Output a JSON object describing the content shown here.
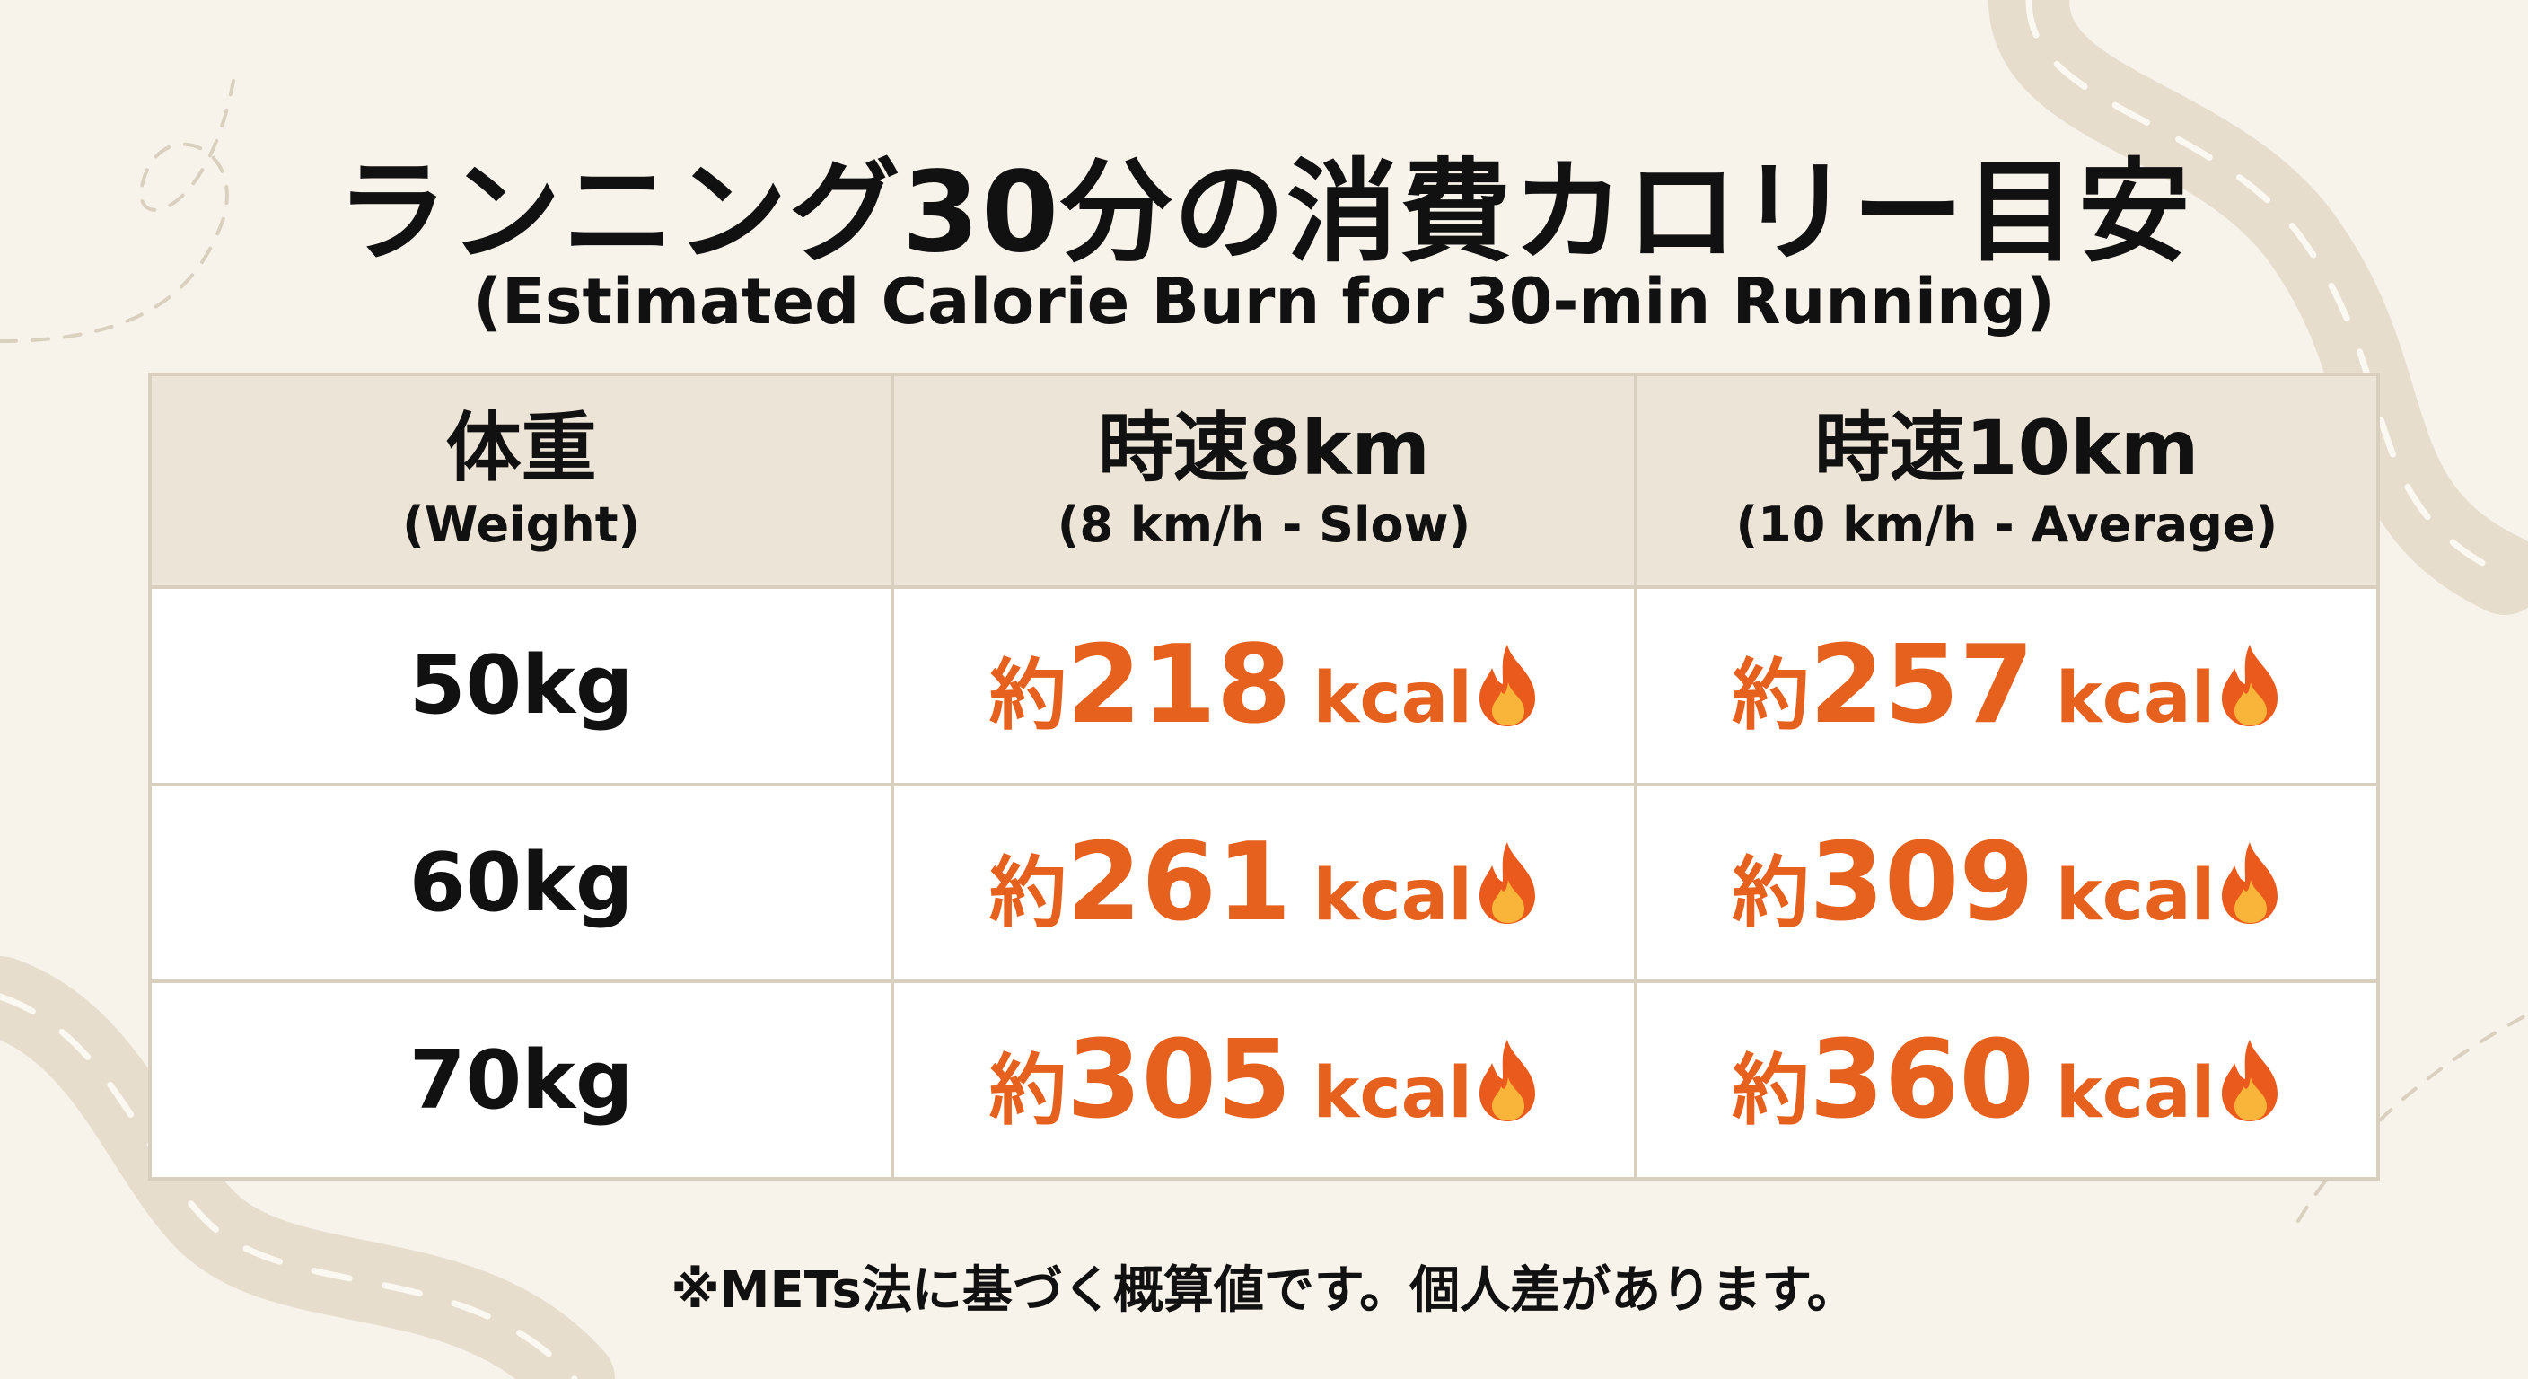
{
  "header": {
    "title": "ランニング30分の消費カロリー目安",
    "subtitle": "(Estimated Calorie Burn for 30-min Running)"
  },
  "table": {
    "columns": [
      {
        "label": "体重",
        "sublabel": "(Weight)"
      },
      {
        "label": "時速8km",
        "sublabel": "(8 km/h - Slow)"
      },
      {
        "label": "時速10km",
        "sublabel": "(10 km/h - Average)"
      }
    ],
    "rows": [
      {
        "weight": "50kg",
        "cells": [
          {
            "prefix": "約",
            "value": 218,
            "unit": "kcal"
          },
          {
            "prefix": "約",
            "value": 257,
            "unit": "kcal"
          }
        ]
      },
      {
        "weight": "60kg",
        "cells": [
          {
            "prefix": "約",
            "value": 261,
            "unit": "kcal"
          },
          {
            "prefix": "約",
            "value": 309,
            "unit": "kcal"
          }
        ]
      },
      {
        "weight": "70kg",
        "cells": [
          {
            "prefix": "約",
            "value": 305,
            "unit": "kcal"
          },
          {
            "prefix": "約",
            "value": 360,
            "unit": "kcal"
          }
        ]
      }
    ]
  },
  "footnote": "※METs法に基づく概算値です。個人差があります。"
}
